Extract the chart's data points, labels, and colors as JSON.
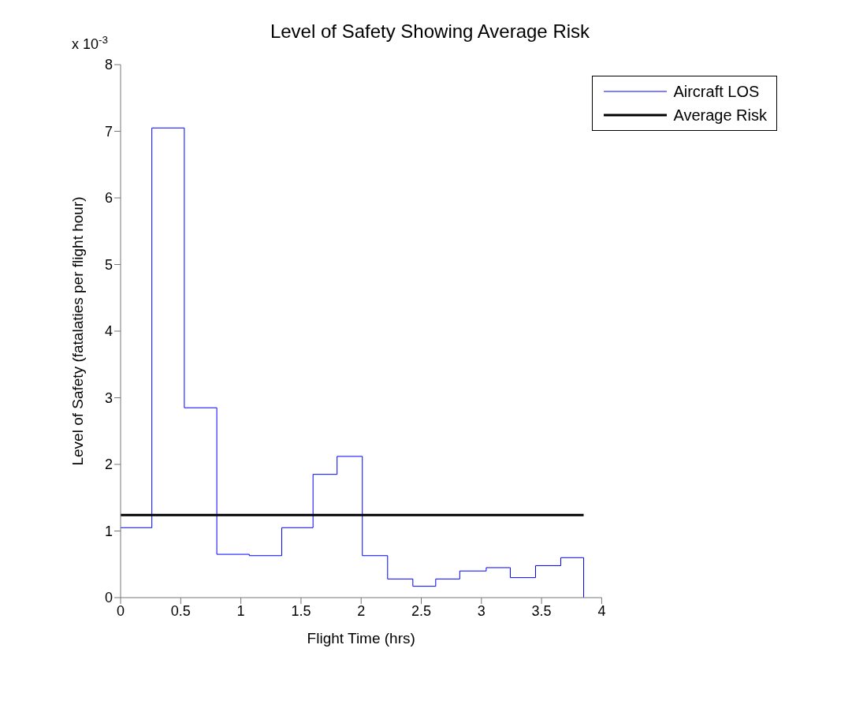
{
  "chart_data": {
    "type": "step",
    "title": "Level of Safety Showing Average Risk",
    "xlabel": "Flight Time (hrs)",
    "ylabel": "Level of Safety (fatalaties per flight hour)",
    "annotations": [
      "x 10$^{-3}$"
    ],
    "series": [
      {
        "name": "Aircraft LOS",
        "color": "#0000ff",
        "x": [
          0,
          0.26,
          0.53,
          0.8,
          1.07,
          1.34,
          1.6,
          1.8,
          2.01,
          2.22,
          2.43,
          2.62,
          2.82,
          3.04,
          3.24,
          3.45,
          3.66,
          3.85
        ],
        "values": [
          1.05,
          7.05,
          2.85,
          0.65,
          0.63,
          1.05,
          1.85,
          2.12,
          0.63,
          0.28,
          0.17,
          0.28,
          0.4,
          0.45,
          0.3,
          0.48,
          0.6,
          0
        ]
      },
      {
        "name": "Average Risk",
        "type": "line",
        "color": "#000000",
        "x": [
          0,
          3.85
        ],
        "values": [
          1.24,
          1.24
        ]
      }
    ],
    "xlim": [
      0,
      4
    ],
    "xticks": [
      0,
      0.5,
      1,
      1.5,
      2,
      2.5,
      3,
      3.5,
      4
    ],
    "ylim": [
      0,
      8
    ],
    "yticks": [
      0,
      1,
      2,
      3,
      4,
      5,
      6,
      7,
      8
    ],
    "grid": false,
    "legend": "top right"
  }
}
